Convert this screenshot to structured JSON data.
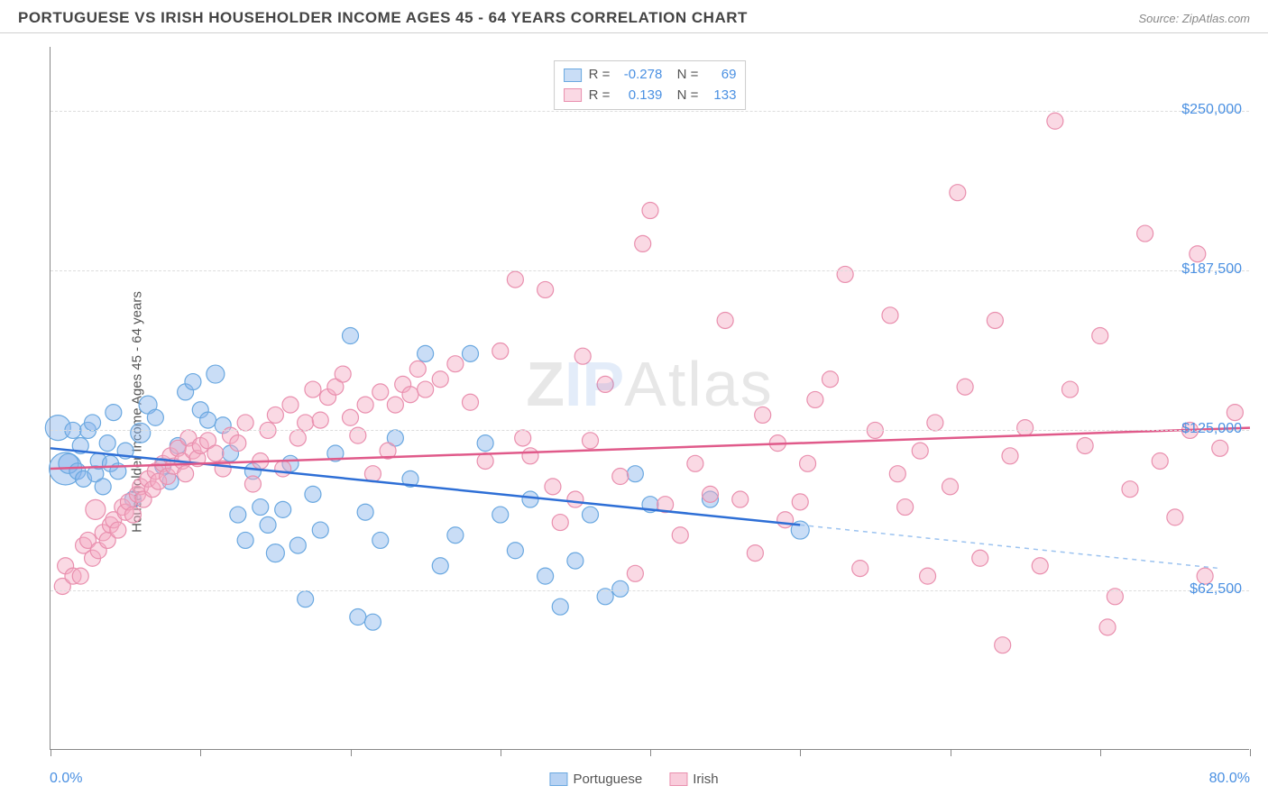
{
  "header": {
    "title": "PORTUGUESE VS IRISH HOUSEHOLDER INCOME AGES 45 - 64 YEARS CORRELATION CHART",
    "source": "Source: ZipAtlas.com"
  },
  "watermark": "ZIPAtlas",
  "chart": {
    "type": "scatter-with-regression",
    "ylabel": "Householder Income Ages 45 - 64 years",
    "xlim": [
      0,
      80
    ],
    "ylim": [
      0,
      275000
    ],
    "xticks_pct": [
      0,
      10,
      20,
      30,
      40,
      50,
      60,
      70,
      80
    ],
    "xaxis_left_label": "0.0%",
    "xaxis_right_label": "80.0%",
    "yticks": [
      {
        "value": 62500,
        "label": "$62,500"
      },
      {
        "value": 125000,
        "label": "$125,000"
      },
      {
        "value": 187500,
        "label": "$187,500"
      },
      {
        "value": 250000,
        "label": "$250,000"
      }
    ],
    "background_color": "#ffffff",
    "grid_color": "#dddddd",
    "axis_color": "#888888",
    "tick_label_color": "#4a90e2",
    "series": [
      {
        "name": "Portuguese",
        "marker_fill": "rgba(135,180,235,0.45)",
        "marker_stroke": "#6aa8e0",
        "line_color": "#2e6fd6",
        "line_width": 2.5,
        "dash_extension_color": "#9cc3f0",
        "marker_radius": 9,
        "R": "-0.278",
        "N": "69",
        "regression": {
          "x1": 0,
          "y1": 118000,
          "x2": 50,
          "y2": 88000,
          "dash_to_x": 78,
          "dash_to_y": 71000
        },
        "points": [
          [
            0.5,
            126000,
            14
          ],
          [
            1,
            110000,
            18
          ],
          [
            1.2,
            112000,
            11
          ],
          [
            1.5,
            125000,
            9
          ],
          [
            1.8,
            109000,
            9
          ],
          [
            2,
            119000,
            9
          ],
          [
            2.2,
            106000,
            9
          ],
          [
            2.5,
            125000,
            9
          ],
          [
            2.8,
            128000,
            9
          ],
          [
            3,
            108000,
            9
          ],
          [
            3.2,
            113000,
            9
          ],
          [
            3.5,
            103000,
            9
          ],
          [
            3.8,
            120000,
            9
          ],
          [
            4,
            112000,
            9
          ],
          [
            4.2,
            132000,
            9
          ],
          [
            4.5,
            109000,
            9
          ],
          [
            5,
            117000,
            9
          ],
          [
            5.5,
            98000,
            9
          ],
          [
            6,
            124000,
            11
          ],
          [
            6.5,
            135000,
            10
          ],
          [
            7,
            130000,
            9
          ],
          [
            7.5,
            111000,
            9
          ],
          [
            8,
            105000,
            9
          ],
          [
            8.5,
            119000,
            9
          ],
          [
            9,
            140000,
            9
          ],
          [
            9.5,
            144000,
            9
          ],
          [
            10,
            133000,
            9
          ],
          [
            10.5,
            129000,
            9
          ],
          [
            11,
            147000,
            10
          ],
          [
            11.5,
            127000,
            9
          ],
          [
            12,
            116000,
            9
          ],
          [
            12.5,
            92000,
            9
          ],
          [
            13,
            82000,
            9
          ],
          [
            13.5,
            109000,
            9
          ],
          [
            14,
            95000,
            9
          ],
          [
            14.5,
            88000,
            9
          ],
          [
            15,
            77000,
            10
          ],
          [
            15.5,
            94000,
            9
          ],
          [
            16,
            112000,
            9
          ],
          [
            16.5,
            80000,
            9
          ],
          [
            17,
            59000,
            9
          ],
          [
            17.5,
            100000,
            9
          ],
          [
            18,
            86000,
            9
          ],
          [
            19,
            116000,
            9
          ],
          [
            20,
            162000,
            9
          ],
          [
            20.5,
            52000,
            9
          ],
          [
            21,
            93000,
            9
          ],
          [
            21.5,
            50000,
            9
          ],
          [
            22,
            82000,
            9
          ],
          [
            23,
            122000,
            9
          ],
          [
            24,
            106000,
            9
          ],
          [
            25,
            155000,
            9
          ],
          [
            26,
            72000,
            9
          ],
          [
            27,
            84000,
            9
          ],
          [
            28,
            155000,
            9
          ],
          [
            29,
            120000,
            9
          ],
          [
            30,
            92000,
            9
          ],
          [
            31,
            78000,
            9
          ],
          [
            32,
            98000,
            9
          ],
          [
            33,
            68000,
            9
          ],
          [
            34,
            56000,
            9
          ],
          [
            35,
            74000,
            9
          ],
          [
            36,
            92000,
            9
          ],
          [
            37,
            60000,
            9
          ],
          [
            38,
            63000,
            9
          ],
          [
            39,
            108000,
            9
          ],
          [
            40,
            96000,
            9
          ],
          [
            44,
            98000,
            9
          ],
          [
            50,
            86000,
            10
          ]
        ]
      },
      {
        "name": "Irish",
        "marker_fill": "rgba(245,170,195,0.45)",
        "marker_stroke": "#e98fae",
        "line_color": "#e05a8a",
        "line_width": 2.5,
        "marker_radius": 9,
        "R": "0.139",
        "N": "133",
        "regression": {
          "x1": 0,
          "y1": 110000,
          "x2": 80,
          "y2": 126000
        },
        "points": [
          [
            0.8,
            64000,
            9
          ],
          [
            1,
            72000,
            9
          ],
          [
            1.5,
            68000,
            9
          ],
          [
            2,
            68000,
            9
          ],
          [
            2.2,
            80000,
            9
          ],
          [
            2.5,
            82000,
            9
          ],
          [
            2.8,
            75000,
            9
          ],
          [
            3,
            94000,
            11
          ],
          [
            3.2,
            78000,
            9
          ],
          [
            3.5,
            85000,
            9
          ],
          [
            3.8,
            82000,
            9
          ],
          [
            4,
            88000,
            9
          ],
          [
            4.2,
            90000,
            9
          ],
          [
            4.5,
            86000,
            9
          ],
          [
            4.8,
            95000,
            9
          ],
          [
            5,
            93000,
            9
          ],
          [
            5.2,
            97000,
            9
          ],
          [
            5.5,
            92000,
            9
          ],
          [
            5.8,
            100000,
            9
          ],
          [
            6,
            103000,
            9
          ],
          [
            6.2,
            98000,
            9
          ],
          [
            6.5,
            106000,
            9
          ],
          [
            6.8,
            102000,
            9
          ],
          [
            7,
            109000,
            9
          ],
          [
            7.2,
            105000,
            9
          ],
          [
            7.5,
            112000,
            9
          ],
          [
            7.8,
            107000,
            9
          ],
          [
            8,
            115000,
            9
          ],
          [
            8.2,
            111000,
            9
          ],
          [
            8.5,
            118000,
            9
          ],
          [
            8.8,
            113000,
            9
          ],
          [
            9,
            108000,
            9
          ],
          [
            9.2,
            122000,
            9
          ],
          [
            9.5,
            117000,
            9
          ],
          [
            9.8,
            114000,
            9
          ],
          [
            10,
            119000,
            9
          ],
          [
            10.5,
            121000,
            9
          ],
          [
            11,
            116000,
            9
          ],
          [
            11.5,
            110000,
            9
          ],
          [
            12,
            123000,
            9
          ],
          [
            12.5,
            120000,
            9
          ],
          [
            13,
            128000,
            9
          ],
          [
            13.5,
            104000,
            9
          ],
          [
            14,
            113000,
            9
          ],
          [
            14.5,
            125000,
            9
          ],
          [
            15,
            131000,
            9
          ],
          [
            15.5,
            110000,
            9
          ],
          [
            16,
            135000,
            9
          ],
          [
            16.5,
            122000,
            9
          ],
          [
            17,
            128000,
            9
          ],
          [
            17.5,
            141000,
            9
          ],
          [
            18,
            129000,
            9
          ],
          [
            18.5,
            138000,
            9
          ],
          [
            19,
            142000,
            9
          ],
          [
            19.5,
            147000,
            9
          ],
          [
            20,
            130000,
            9
          ],
          [
            20.5,
            123000,
            9
          ],
          [
            21,
            135000,
            9
          ],
          [
            21.5,
            108000,
            9
          ],
          [
            22,
            140000,
            9
          ],
          [
            22.5,
            117000,
            9
          ],
          [
            23,
            135000,
            9
          ],
          [
            23.5,
            143000,
            9
          ],
          [
            24,
            139000,
            9
          ],
          [
            24.5,
            149000,
            9
          ],
          [
            25,
            141000,
            9
          ],
          [
            26,
            145000,
            9
          ],
          [
            27,
            151000,
            9
          ],
          [
            28,
            136000,
            9
          ],
          [
            29,
            113000,
            9
          ],
          [
            30,
            156000,
            9
          ],
          [
            31,
            184000,
            9
          ],
          [
            31.5,
            122000,
            9
          ],
          [
            32,
            115000,
            9
          ],
          [
            33,
            180000,
            9
          ],
          [
            33.5,
            103000,
            9
          ],
          [
            34,
            89000,
            9
          ],
          [
            35,
            98000,
            9
          ],
          [
            35.5,
            154000,
            9
          ],
          [
            36,
            121000,
            9
          ],
          [
            37,
            143000,
            9
          ],
          [
            38,
            107000,
            9
          ],
          [
            39,
            69000,
            9
          ],
          [
            39.5,
            198000,
            9
          ],
          [
            40,
            211000,
            9
          ],
          [
            41,
            96000,
            9
          ],
          [
            42,
            84000,
            9
          ],
          [
            43,
            112000,
            9
          ],
          [
            44,
            100000,
            9
          ],
          [
            45,
            168000,
            9
          ],
          [
            46,
            98000,
            9
          ],
          [
            47,
            77000,
            9
          ],
          [
            47.5,
            131000,
            9
          ],
          [
            48.5,
            120000,
            9
          ],
          [
            49,
            90000,
            9
          ],
          [
            50,
            97000,
            9
          ],
          [
            50.5,
            112000,
            9
          ],
          [
            51,
            137000,
            9
          ],
          [
            52,
            145000,
            9
          ],
          [
            53,
            186000,
            9
          ],
          [
            54,
            71000,
            9
          ],
          [
            55,
            125000,
            9
          ],
          [
            56,
            170000,
            9
          ],
          [
            56.5,
            108000,
            9
          ],
          [
            57,
            95000,
            9
          ],
          [
            58,
            117000,
            9
          ],
          [
            58.5,
            68000,
            9
          ],
          [
            59,
            128000,
            9
          ],
          [
            60,
            103000,
            9
          ],
          [
            60.5,
            218000,
            9
          ],
          [
            61,
            142000,
            9
          ],
          [
            62,
            75000,
            9
          ],
          [
            63,
            168000,
            9
          ],
          [
            63.5,
            41000,
            9
          ],
          [
            64,
            115000,
            9
          ],
          [
            65,
            126000,
            9
          ],
          [
            66,
            72000,
            9
          ],
          [
            67,
            246000,
            9
          ],
          [
            68,
            141000,
            9
          ],
          [
            69,
            119000,
            9
          ],
          [
            70,
            162000,
            9
          ],
          [
            70.5,
            48000,
            9
          ],
          [
            71,
            60000,
            9
          ],
          [
            72,
            102000,
            9
          ],
          [
            73,
            202000,
            9
          ],
          [
            74,
            113000,
            9
          ],
          [
            75,
            91000,
            9
          ],
          [
            76,
            125000,
            9
          ],
          [
            76.5,
            194000,
            9
          ],
          [
            77,
            68000,
            9
          ],
          [
            78,
            118000,
            9
          ],
          [
            79,
            132000,
            9
          ]
        ]
      }
    ],
    "legend": {
      "items": [
        {
          "label": "Portuguese",
          "fill": "rgba(135,180,235,0.6)",
          "stroke": "#6aa8e0"
        },
        {
          "label": "Irish",
          "fill": "rgba(245,170,195,0.6)",
          "stroke": "#e98fae"
        }
      ]
    }
  }
}
